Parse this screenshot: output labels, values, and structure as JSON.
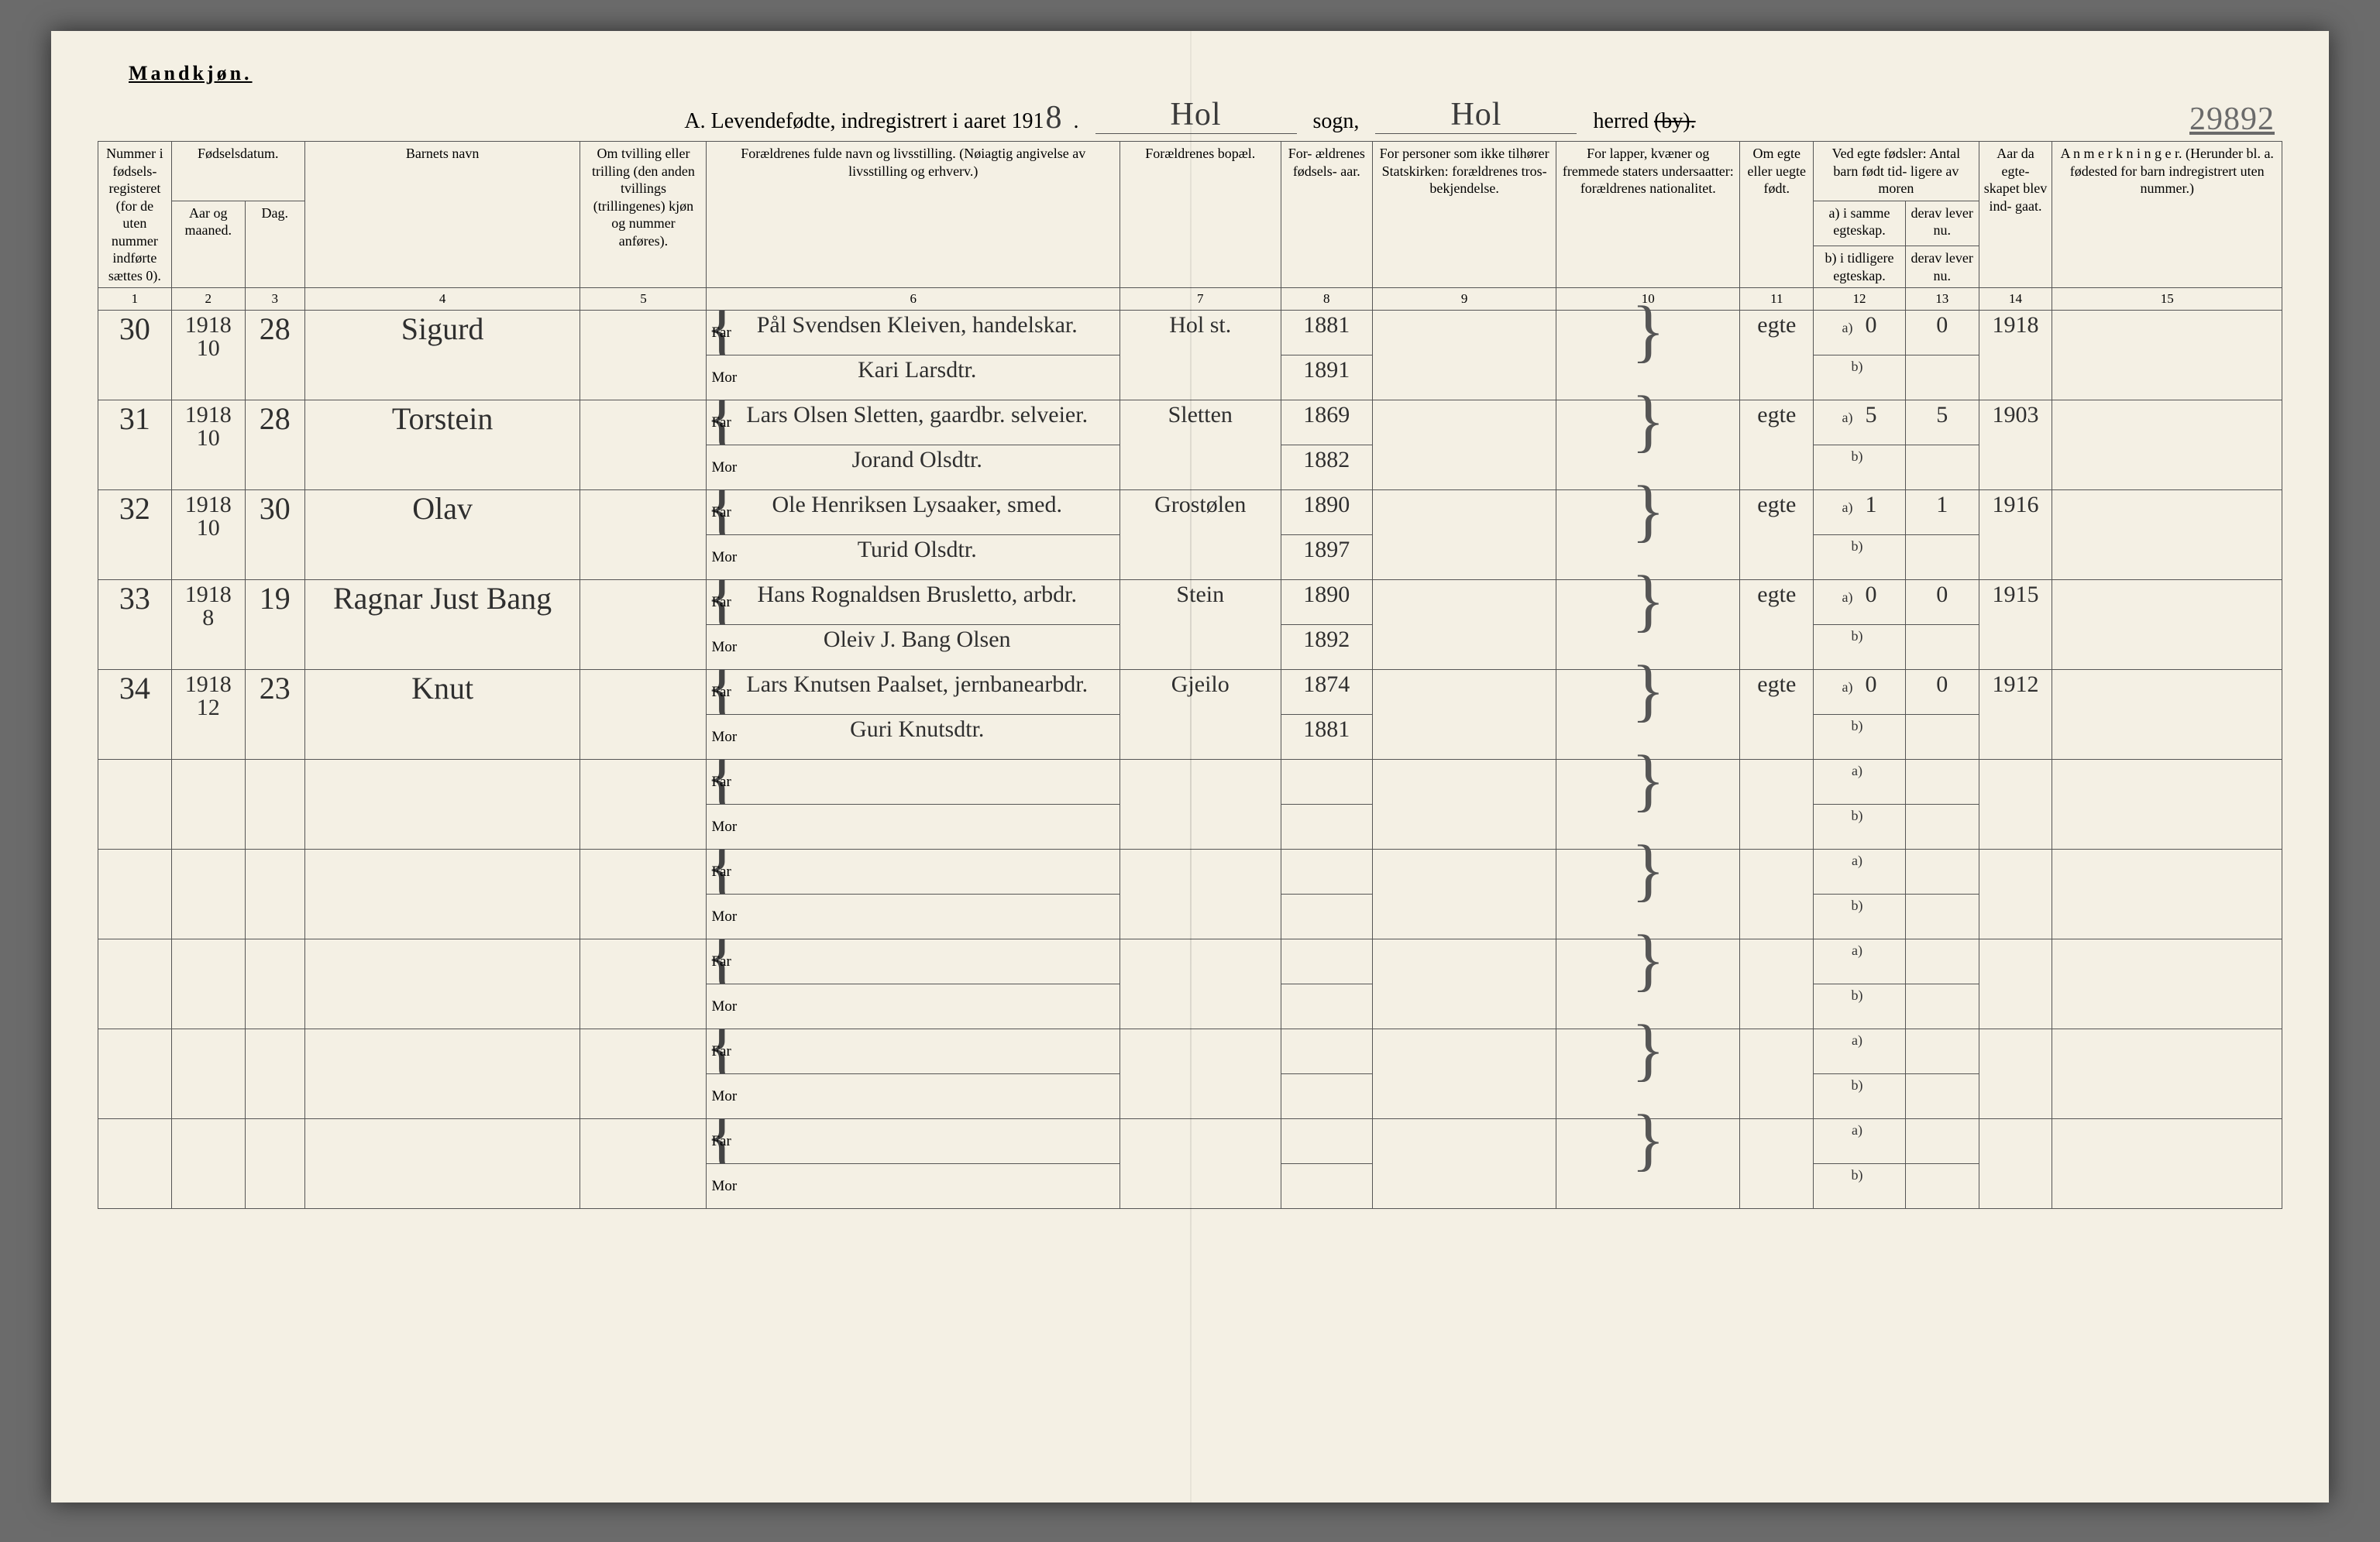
{
  "gender_heading": "Mandkjøn.",
  "title_prefix": "A. Levendefødte, indregistrert i aaret 191",
  "title_year_digit": "8",
  "title_sogn_label": "sogn,",
  "title_herred_label": "herred",
  "title_by_struck": "(by).",
  "sogn_value": "Hol",
  "herred_value": "Hol",
  "margin_number": "29892",
  "colors": {
    "page_bg": "#f4f0e4",
    "ink": "#2f2f2f",
    "rule": "#555555"
  },
  "headers": {
    "c1": "Nummer i fødsels- registeret (for de uten nummer indførte sættes 0).",
    "c2_top": "Fødselsdatum.",
    "c2a": "Aar og maaned.",
    "c2b": "Dag.",
    "c4": "Barnets navn",
    "c5": "Om tvilling eller trilling (den anden tvillings (trillingenes) kjøn og nummer anføres).",
    "c6": "Forældrenes fulde navn og livsstilling. (Nøiagtig angivelse av livsstilling og erhverv.)",
    "c7": "Forældrenes bopæl.",
    "c8": "For- ældrenes fødsels- aar.",
    "c9": "For personer som ikke tilhører Statskirken: forældrenes tros- bekjendelse.",
    "c10": "For lapper, kvæner og fremmede staters undersaatter: forældrenes nationalitet.",
    "c11": "Om egte eller uegte født.",
    "c12_top": "Ved egte fødsler: Antal barn født tid- ligere av moren",
    "c12a": "a) i samme egteskap.",
    "c12b": "b) i tidligere egteskap.",
    "c13a": "derav lever nu.",
    "c13b": "derav lever nu.",
    "c14": "Aar da egte- skapet blev ind- gaat.",
    "c15": "A n m e r k n i n g e r. (Herunder bl. a. fødested for barn indregistrert uten nummer.)",
    "far": "Far",
    "mor": "Mor"
  },
  "colnums": [
    "1",
    "2",
    "3",
    "4",
    "5",
    "6",
    "7",
    "8",
    "9",
    "10",
    "11",
    "12",
    "13",
    "14",
    "15"
  ],
  "rows": [
    {
      "num": "30",
      "ym": "1918 / 10",
      "day": "28",
      "name": "Sigurd",
      "far": "Pål Svendsen Kleiven, handelskar.",
      "mor": "Kari Larsdtr.",
      "res": "Hol st.",
      "yr_far": "1881",
      "yr_mor": "1891",
      "leg": "egte",
      "a": "0",
      "a2": "0",
      "marYear": "1918"
    },
    {
      "num": "31",
      "ym": "1918 / 10",
      "day": "28",
      "name": "Torstein",
      "far": "Lars Olsen Sletten, gaardbr. selveier.",
      "mor": "Jorand Olsdtr.",
      "res": "Sletten",
      "yr_far": "1869",
      "yr_mor": "1882",
      "leg": "egte",
      "a": "5",
      "a2": "5",
      "marYear": "1903"
    },
    {
      "num": "32",
      "ym": "1918 / 10",
      "day": "30",
      "name": "Olav",
      "far": "Ole Henriksen Lysaaker, smed.",
      "mor": "Turid Olsdtr.",
      "res": "Grostølen",
      "yr_far": "1890",
      "yr_mor": "1897",
      "leg": "egte",
      "a": "1",
      "a2": "1",
      "marYear": "1916"
    },
    {
      "num": "33",
      "ym": "1918 / 8",
      "day": "19",
      "name": "Ragnar Just Bang",
      "far": "Hans Rognaldsen Brusletto, arbdr.",
      "mor": "Oleiv J. Bang Olsen",
      "res": "Stein",
      "yr_far": "1890",
      "yr_mor": "1892",
      "leg": "egte",
      "a": "0",
      "a2": "0",
      "marYear": "1915"
    },
    {
      "num": "34",
      "ym": "1918 / 12",
      "day": "23",
      "name": "Knut",
      "far": "Lars Knutsen Paalset, jernbanearbdr.",
      "mor": "Guri Knutsdtr.",
      "res": "Gjeilo",
      "yr_far": "1874",
      "yr_mor": "1881",
      "leg": "egte",
      "a": "0",
      "a2": "0",
      "marYear": "1912"
    }
  ],
  "blank_count": 5
}
